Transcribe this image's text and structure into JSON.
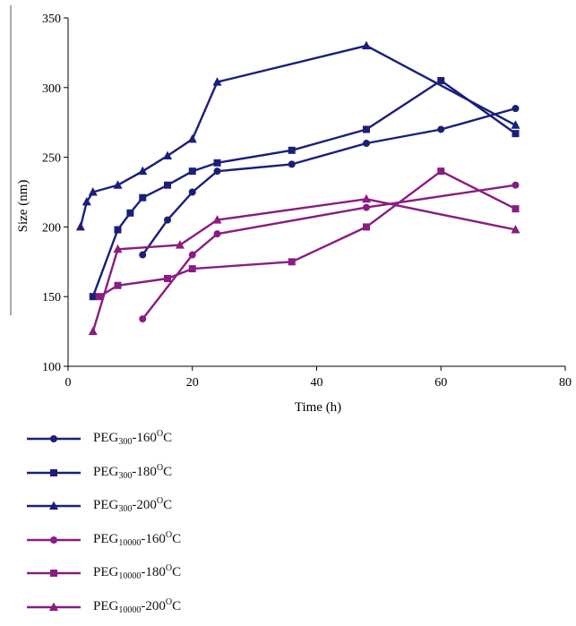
{
  "chart_data": {
    "type": "line",
    "xlabel": "Time (h)",
    "ylabel": "Size (nm)",
    "xlim": [
      0,
      80
    ],
    "ylim": [
      100,
      350
    ],
    "xticks": [
      "0",
      "20",
      "40",
      "60",
      "80"
    ],
    "yticks": [
      "100",
      "150",
      "200",
      "250",
      "300",
      "350"
    ],
    "grid": false,
    "legend_position": "bottom-left",
    "series": [
      {
        "name": "PEG300-160°C",
        "label_base": "PEG",
        "label_sub": "300",
        "label_mid": "-160",
        "label_sup": "O",
        "label_end": "C",
        "color": "#1a1f7a",
        "marker": "circle",
        "x": [
          12,
          16,
          20,
          24,
          36,
          48,
          60,
          72
        ],
        "y": [
          180,
          205,
          225,
          240,
          245,
          260,
          270,
          285
        ]
      },
      {
        "name": "PEG300-180°C",
        "label_base": "PEG",
        "label_sub": "300",
        "label_mid": "-180",
        "label_sup": "O",
        "label_end": "C",
        "color": "#1a1f7a",
        "marker": "square",
        "x": [
          4,
          8,
          10,
          12,
          16,
          20,
          24,
          36,
          48,
          60,
          72
        ],
        "y": [
          150,
          198,
          210,
          221,
          230,
          240,
          246,
          255,
          270,
          305,
          267
        ]
      },
      {
        "name": "PEG300-200°C",
        "label_base": "PEG",
        "label_sub": "300",
        "label_mid": "-200",
        "label_sup": "O",
        "label_end": "C",
        "color": "#1a1f7a",
        "marker": "triangle",
        "x": [
          2,
          3,
          4,
          8,
          12,
          16,
          20,
          24,
          48,
          72
        ],
        "y": [
          200,
          218,
          225,
          230,
          240,
          251,
          263,
          304,
          330,
          273
        ]
      },
      {
        "name": "PEG10000-160°C",
        "label_base": "PEG",
        "label_sub": "10000",
        "label_mid": "-160",
        "label_sup": "O",
        "label_end": "C",
        "color": "#8a1c82",
        "marker": "circle",
        "x": [
          12,
          20,
          24,
          48,
          72
        ],
        "y": [
          134,
          180,
          195,
          214,
          230
        ]
      },
      {
        "name": "PEG10000-180°C",
        "label_base": "PEG",
        "label_sub": "10000",
        "label_mid": "-180",
        "label_sup": "O",
        "label_end": "C",
        "color": "#8a1c82",
        "marker": "square",
        "x": [
          5,
          8,
          16,
          20,
          36,
          48,
          60,
          72
        ],
        "y": [
          150,
          158,
          163,
          170,
          175,
          200,
          240,
          213
        ]
      },
      {
        "name": "PEG10000-200°C",
        "label_base": "PEG",
        "label_sub": "10000",
        "label_mid": "-200",
        "label_sup": "O",
        "label_end": "C",
        "color": "#8a1c82",
        "marker": "triangle",
        "x": [
          4,
          8,
          18,
          24,
          48,
          72
        ],
        "y": [
          125,
          184,
          187,
          205,
          220,
          198
        ]
      }
    ]
  }
}
